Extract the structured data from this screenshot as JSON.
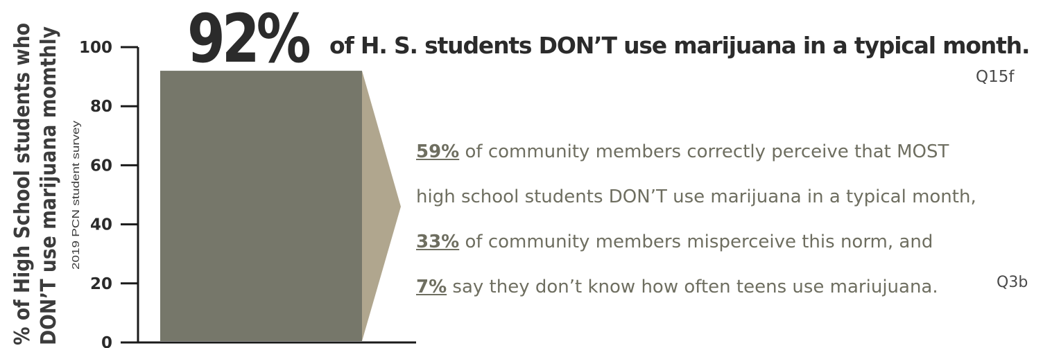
{
  "chart_data": {
    "type": "bar",
    "categories": [
      ""
    ],
    "values": [
      92
    ],
    "ylabel_line1": "% of High School students who",
    "ylabel_line2": "DON’T use marijuana momthly",
    "source": "2019 PCN student survey",
    "ylim": [
      0,
      100
    ],
    "yticks": [
      0,
      20,
      40,
      60,
      80,
      100
    ],
    "bar_color": "#76776a",
    "arrow_color": "#b0a68e",
    "grid": false
  },
  "headline": {
    "big": "92%",
    "rest": "of H. S. students DON’T use marijuana in a typical month.",
    "ref": "Q15f"
  },
  "perception": {
    "line1_pct": "59%",
    "line1_text": " of community members correctly perceive that MOST",
    "line2_text": "high school students DON’T use marijuana in a typical month,",
    "line3_pct": "33%",
    "line3_text": " of community members misperceive this norm, and",
    "line4_pct": "7%",
    "line4_text": " say they don’t know how often teens use mariujuana.",
    "ref": "Q3b"
  }
}
